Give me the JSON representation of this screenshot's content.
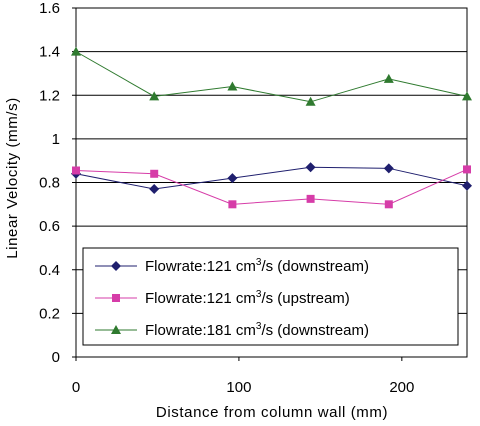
{
  "chart_data": {
    "type": "line",
    "xlabel": "Distance from column wall (mm)",
    "ylabel": "Linear Velocity (mm/s)",
    "xlim": [
      0,
      240
    ],
    "ylim": [
      0,
      1.6
    ],
    "x_ticks": [
      0,
      100,
      200
    ],
    "x_tick_labels": [
      "0",
      "100",
      "200"
    ],
    "y_ticks": [
      0,
      0.2,
      0.4,
      0.6,
      0.8,
      1.0,
      1.2,
      1.4,
      1.6
    ],
    "y_tick_labels": [
      "0",
      "0.2",
      "0.4",
      "0.6",
      "0.8",
      "1",
      "1.2",
      "1.4",
      "1.6"
    ],
    "grid": "horizontal",
    "legend_position": "bottom-right inside",
    "series": [
      {
        "label_prefix": "Flowrate:121  cm",
        "label_sup": "3",
        "label_suffix": "/s  (downstream)",
        "color": "#1f1f6e",
        "marker": "diamond",
        "x": [
          0,
          48,
          96,
          144,
          192,
          240
        ],
        "y": [
          0.84,
          0.77,
          0.82,
          0.87,
          0.865,
          0.785
        ]
      },
      {
        "label_prefix": "Flowrate:121  cm",
        "label_sup": "3",
        "label_suffix": "/s  (upstream)",
        "color": "#d63ca8",
        "marker": "square",
        "x": [
          0,
          48,
          96,
          144,
          192,
          240
        ],
        "y": [
          0.855,
          0.84,
          0.7,
          0.725,
          0.7,
          0.86
        ]
      },
      {
        "label_prefix": "Flowrate:181  cm",
        "label_sup": "3",
        "label_suffix": "/s  (downstream)",
        "color": "#2f7a2f",
        "marker": "triangle",
        "x": [
          0,
          48,
          96,
          144,
          192,
          240
        ],
        "y": [
          1.4,
          1.195,
          1.24,
          1.17,
          1.275,
          1.195
        ]
      }
    ]
  }
}
